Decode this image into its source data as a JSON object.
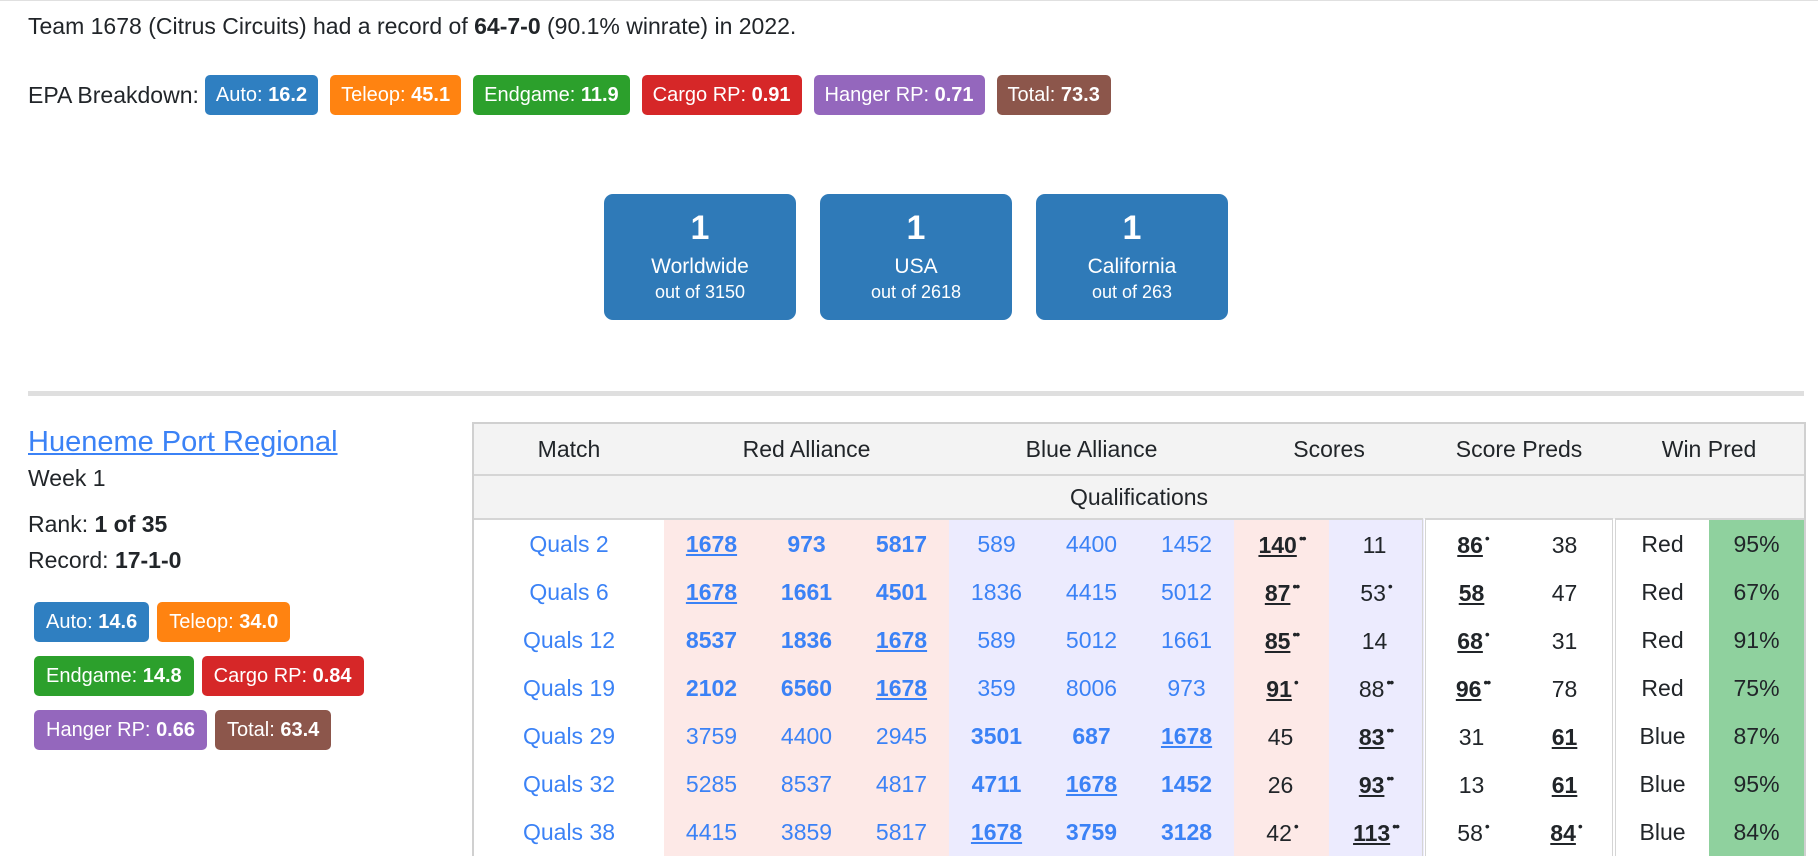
{
  "summary": {
    "prefix": "Team 1678 (Citrus Circuits) had a record of ",
    "record": "64-7-0",
    "suffix": " (90.1% winrate) in 2022."
  },
  "epa": {
    "label": "EPA Breakdown:",
    "items": [
      {
        "label": "Auto: ",
        "value": "16.2"
      },
      {
        "label": "Teleop: ",
        "value": "45.1"
      },
      {
        "label": "Endgame: ",
        "value": "11.9"
      },
      {
        "label": "Cargo RP: ",
        "value": "0.91"
      },
      {
        "label": "Hanger RP: ",
        "value": "0.71"
      },
      {
        "label": "Total: ",
        "value": "73.3"
      }
    ]
  },
  "colors": {
    "auto": "#2f7fc1",
    "teleop": "#ff8311",
    "endgame": "#2ca02c",
    "cargo": "#d62728",
    "hanger": "#9467bd",
    "total": "#8c564b",
    "link": "#3b82f6"
  },
  "ranks": [
    {
      "rank": "1",
      "name": "Worldwide",
      "out": "out of 3150"
    },
    {
      "rank": "1",
      "name": "USA",
      "out": "out of 2618"
    },
    {
      "rank": "1",
      "name": "California",
      "out": "out of 263"
    }
  ],
  "event": {
    "name": "Hueneme Port Regional",
    "week": "Week 1",
    "rank_label": "Rank: ",
    "rank_value": "1 of 35",
    "record_label": "Record: ",
    "record_value": "17-1-0",
    "epa": [
      {
        "label": "Auto: ",
        "value": "14.6"
      },
      {
        "label": "Teleop: ",
        "value": "34.0"
      },
      {
        "label": "Endgame: ",
        "value": "14.8"
      },
      {
        "label": "Cargo RP: ",
        "value": "0.84"
      },
      {
        "label": "Hanger RP: ",
        "value": "0.66"
      },
      {
        "label": "Total: ",
        "value": "63.4"
      }
    ]
  },
  "table": {
    "headers": [
      "Match",
      "Red Alliance",
      "Blue Alliance",
      "Scores",
      "Score Preds",
      "Win Pred"
    ],
    "section": "Qualifications",
    "rows": [
      {
        "match": "Quals 2",
        "red": [
          "1678",
          "973",
          "5817"
        ],
        "blue": [
          "589",
          "4400",
          "1452"
        ],
        "red_score": "140",
        "red_rp": "••",
        "blue_score": "11",
        "blue_rp": "",
        "red_pred": "86",
        "red_pred_rp": "•",
        "blue_pred": "38",
        "blue_pred_rp": "",
        "winner": "Red",
        "prob": "95%"
      },
      {
        "match": "Quals 6",
        "red": [
          "1678",
          "1661",
          "4501"
        ],
        "blue": [
          "1836",
          "4415",
          "5012"
        ],
        "red_score": "87",
        "red_rp": "••",
        "blue_score": "53",
        "blue_rp": "•",
        "red_pred": "58",
        "red_pred_rp": "",
        "blue_pred": "47",
        "blue_pred_rp": "",
        "winner": "Red",
        "prob": "67%"
      },
      {
        "match": "Quals 12",
        "red": [
          "8537",
          "1836",
          "1678"
        ],
        "blue": [
          "589",
          "5012",
          "1661"
        ],
        "red_score": "85",
        "red_rp": "••",
        "blue_score": "14",
        "blue_rp": "",
        "red_pred": "68",
        "red_pred_rp": "•",
        "blue_pred": "31",
        "blue_pred_rp": "",
        "winner": "Red",
        "prob": "91%"
      },
      {
        "match": "Quals 19",
        "red": [
          "2102",
          "6560",
          "1678"
        ],
        "blue": [
          "359",
          "8006",
          "973"
        ],
        "red_score": "91",
        "red_rp": "•",
        "blue_score": "88",
        "blue_rp": "••",
        "red_pred": "96",
        "red_pred_rp": "••",
        "blue_pred": "78",
        "blue_pred_rp": "",
        "winner": "Red",
        "prob": "75%"
      },
      {
        "match": "Quals 29",
        "red": [
          "3759",
          "4400",
          "2945"
        ],
        "blue": [
          "3501",
          "687",
          "1678"
        ],
        "red_score": "45",
        "red_rp": "",
        "blue_score": "83",
        "blue_rp": "••",
        "red_pred": "31",
        "red_pred_rp": "",
        "blue_pred": "61",
        "blue_pred_rp": "",
        "winner": "Blue",
        "prob": "87%"
      },
      {
        "match": "Quals 32",
        "red": [
          "5285",
          "8537",
          "4817"
        ],
        "blue": [
          "4711",
          "1678",
          "1452"
        ],
        "red_score": "26",
        "red_rp": "",
        "blue_score": "93",
        "blue_rp": "••",
        "red_pred": "13",
        "red_pred_rp": "",
        "blue_pred": "61",
        "blue_pred_rp": "",
        "winner": "Blue",
        "prob": "95%"
      },
      {
        "match": "Quals 38",
        "red": [
          "4415",
          "3859",
          "5817"
        ],
        "blue": [
          "1678",
          "3759",
          "3128"
        ],
        "red_score": "42",
        "red_rp": "•",
        "blue_score": "113",
        "blue_rp": "••",
        "red_pred": "58",
        "red_pred_rp": "•",
        "blue_pred": "84",
        "blue_pred_rp": "•",
        "winner": "Blue",
        "prob": "84%"
      }
    ]
  }
}
